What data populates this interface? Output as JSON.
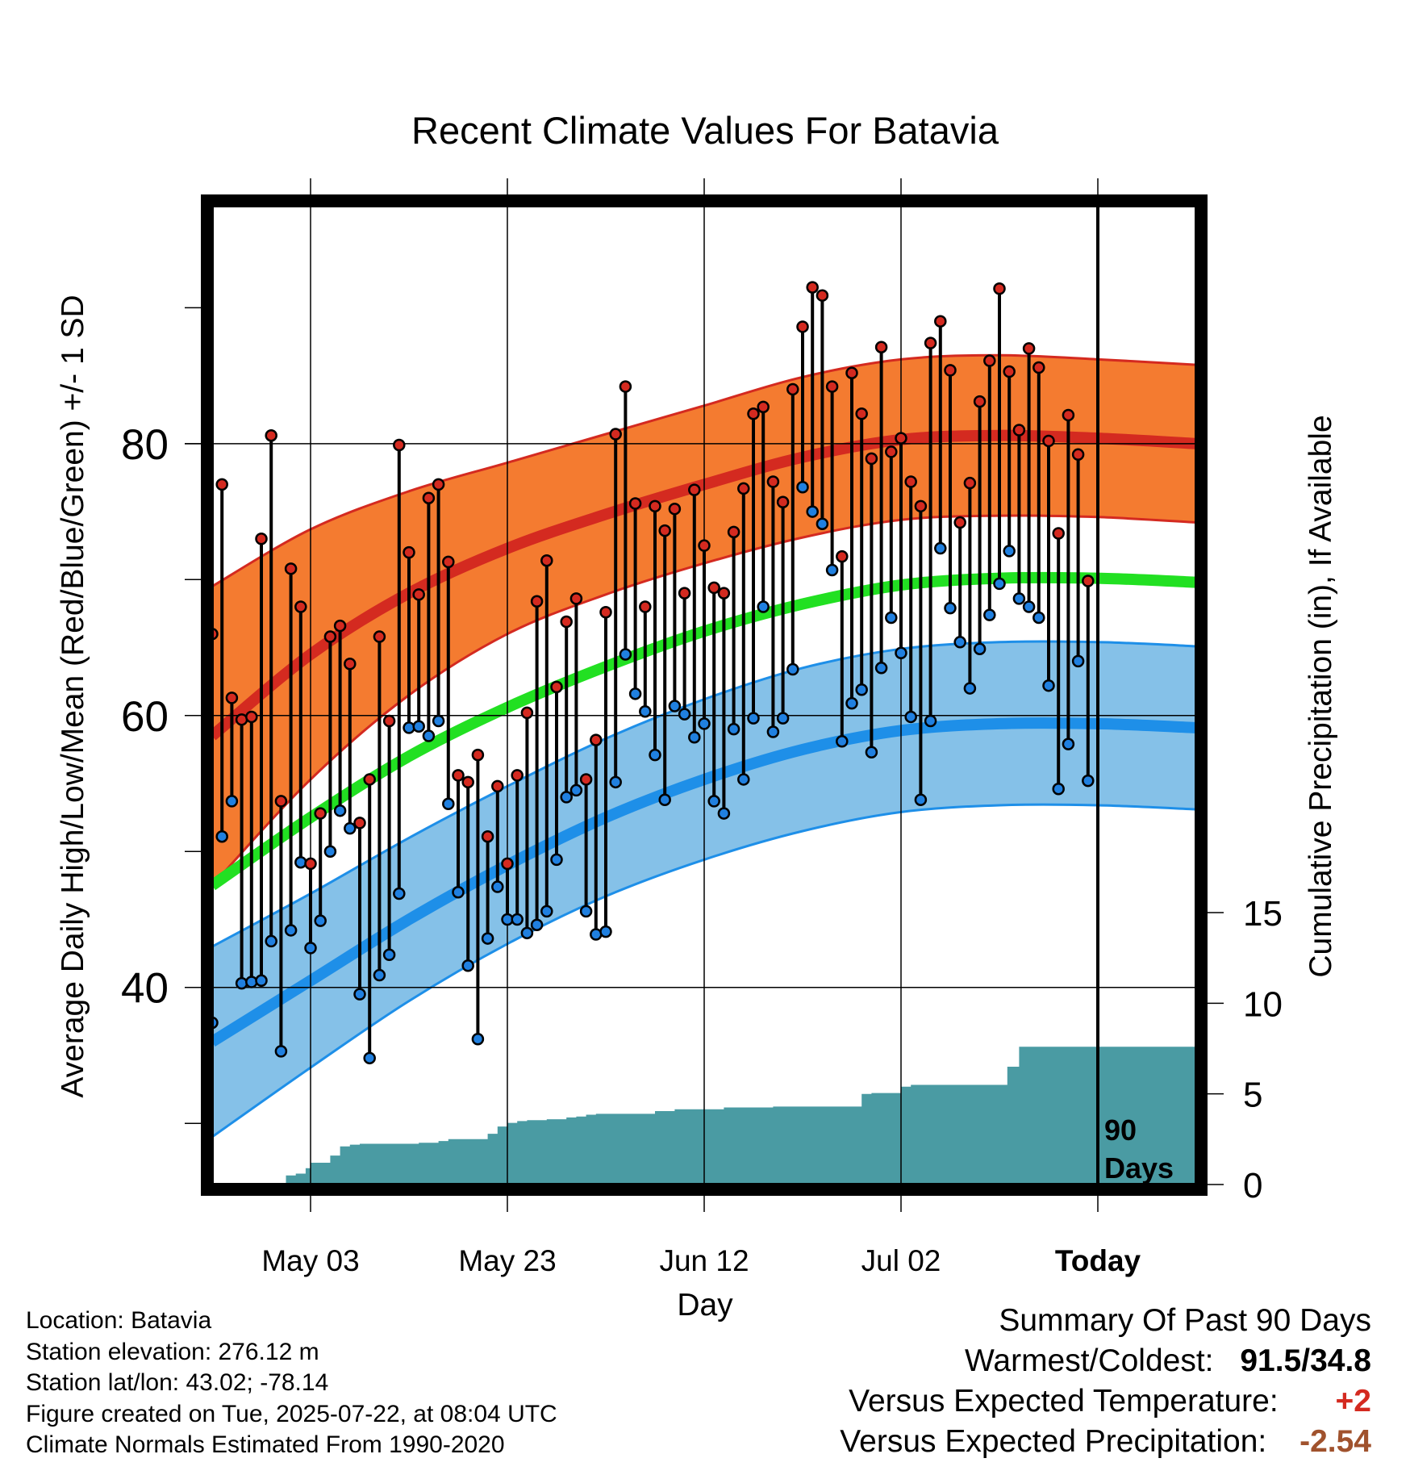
{
  "colors": {
    "high_band": "#f47b30",
    "high_line": "#d42a20",
    "low_band": "#85c1e8",
    "low_line": "#1e8fe8",
    "mean_line": "#22e022",
    "precip": "#4a9ba3",
    "high_dot": "#d42a20",
    "low_dot": "#2080e0",
    "temp_anomaly": "#d42a20",
    "precip_anomaly": "#a0522d"
  },
  "chart_data": {
    "type": "line",
    "title": "Recent Climate Values For Batavia",
    "xlabel": "Day",
    "ylabel": "Average Daily High/Low/Mean (Red/Blue/Green) +/- 1 SD",
    "y2label": "Cumulative Precipitation (in), If Available",
    "x_tick_labels": [
      "May 03",
      "May 23",
      "Jun 12",
      "Jul 02",
      "Today"
    ],
    "y_ticks": [
      "40",
      "60",
      "80"
    ],
    "y2_ticks": [
      "0",
      "5",
      "10",
      "15"
    ],
    "xlim_days": [
      0,
      100
    ],
    "ylim": [
      25.5,
      97.5
    ],
    "y2lim": [
      0,
      54
    ],
    "today_marker_day": 90,
    "today_annotation": [
      "90",
      "Days"
    ],
    "grid": true,
    "normals": {
      "days": [
        0,
        10,
        20,
        30,
        40,
        50,
        60,
        70,
        80,
        90,
        100
      ],
      "high": [
        58.5,
        64.5,
        69,
        72.3,
        74.8,
        77,
        79,
        80.3,
        80.6,
        80.4,
        80
      ],
      "low": [
        36,
        40.5,
        45,
        49,
        52.5,
        55.3,
        57.5,
        58.9,
        59.4,
        59.4,
        59.1
      ],
      "mean": [
        47.5,
        52.5,
        57,
        60.6,
        63.6,
        66.2,
        68.2,
        69.6,
        70.1,
        70.1,
        69.8
      ],
      "high_sd": [
        11,
        9.2,
        7.5,
        6.3,
        5.9,
        5.8,
        5.9,
        5.9,
        5.9,
        5.8,
        5.8
      ],
      "low_sd": [
        7,
        6.4,
        6,
        5.8,
        5.8,
        5.9,
        6,
        6,
        6,
        6,
        6
      ]
    },
    "series": [
      {
        "name": "High",
        "values": [
          66,
          77,
          61.3,
          59.7,
          59.9,
          73,
          80.6,
          53.7,
          70.8,
          68,
          49.1,
          52.8,
          65.8,
          66.6,
          63.8,
          52.1,
          55.3,
          65.8,
          59.6,
          79.9,
          72,
          68.9,
          76,
          77,
          71.3,
          55.6,
          55.1,
          57.1,
          51.1,
          54.8,
          49.1,
          55.6,
          60.2,
          68.4,
          71.4,
          62.1,
          66.9,
          68.6,
          55.3,
          58.2,
          67.6,
          80.7,
          84.2,
          75.6,
          68,
          75.4,
          73.6,
          75.2,
          69,
          76.6,
          72.5,
          69.4,
          69,
          73.5,
          76.7,
          82.2,
          82.7,
          77.2,
          75.7,
          84,
          88.6,
          91.5,
          90.9,
          84.2,
          71.7,
          85.2,
          82.2,
          78.9,
          87.1,
          79.4,
          80.4,
          77.2,
          75.4,
          87.4,
          89,
          85.4,
          74.2,
          77.1,
          83.1,
          86.1,
          91.4,
          85.3,
          81,
          87,
          85.6,
          80.2,
          73.4,
          82.1,
          79.2,
          69.9
        ],
        "color": "#d42a20"
      },
      {
        "name": "Low",
        "values": [
          37.4,
          51.1,
          53.7,
          40.3,
          40.4,
          40.5,
          43.4,
          35.3,
          44.2,
          49.2,
          42.9,
          44.9,
          50,
          53,
          51.7,
          39.5,
          34.8,
          40.9,
          42.4,
          46.9,
          59.1,
          59.2,
          58.5,
          59.6,
          53.5,
          47,
          41.6,
          36.2,
          43.6,
          47.4,
          45,
          45,
          44,
          44.6,
          45.6,
          49.4,
          54,
          54.5,
          45.6,
          43.9,
          44.1,
          55.1,
          64.5,
          61.6,
          60.3,
          57.1,
          53.8,
          60.7,
          60.1,
          58.4,
          59.4,
          53.7,
          52.8,
          59,
          55.3,
          59.8,
          68,
          58.8,
          59.8,
          63.4,
          76.8,
          75,
          74.1,
          70.7,
          58.1,
          60.9,
          61.9,
          57.3,
          63.5,
          67.2,
          64.6,
          59.9,
          53.8,
          59.6,
          72.3,
          67.9,
          65.4,
          62,
          64.9,
          67.4,
          69.7,
          72.1,
          68.6,
          68,
          67.2,
          62.2,
          54.6,
          57.9,
          64,
          55.2
        ],
        "color": "#2080e0"
      }
    ],
    "precipitation": {
      "days": [
        0,
        7,
        7.5,
        8.5,
        9.5,
        10,
        11,
        12,
        13,
        14,
        15,
        16,
        17,
        18,
        19,
        20,
        21,
        22,
        23,
        24,
        25,
        26,
        27,
        28,
        29,
        30,
        31,
        32,
        33,
        34,
        35,
        36,
        37,
        38,
        39,
        40,
        45,
        46,
        47,
        50,
        52,
        54,
        57,
        60,
        63,
        65,
        66,
        67,
        68,
        70,
        71,
        74,
        80,
        80.8,
        82,
        90,
        100
      ],
      "inches": [
        0,
        0,
        0.5,
        0.6,
        0.9,
        1.2,
        1.2,
        1.6,
        2.1,
        2.2,
        2.25,
        2.25,
        2.25,
        2.25,
        2.25,
        2.25,
        2.3,
        2.3,
        2.4,
        2.5,
        2.5,
        2.5,
        2.5,
        2.8,
        3.2,
        3.4,
        3.5,
        3.55,
        3.55,
        3.6,
        3.6,
        3.7,
        3.75,
        3.85,
        3.9,
        3.9,
        4.05,
        4.05,
        4.15,
        4.15,
        4.25,
        4.25,
        4.3,
        4.3,
        4.3,
        4.3,
        5,
        5.05,
        5.05,
        5.4,
        5.5,
        5.5,
        5.5,
        6.5,
        7.6,
        7.6,
        7.6
      ]
    }
  },
  "info": {
    "location": "Location: Batavia",
    "elevation": "Station elevation: 276.12 m",
    "latlon": "Station lat/lon: 43.02; -78.14",
    "created": "Figure created on Tue, 2025-07-22, at 08:04 UTC",
    "normals": "Climate Normals Estimated From 1990-2020"
  },
  "summary": {
    "title": "Summary Of Past 90 Days",
    "warm_cold_label": "Warmest/Coldest:",
    "warm_cold_value": "91.5/34.8",
    "temp_label": "Versus Expected Temperature:",
    "temp_value": "+2",
    "precip_label": "Versus Expected Precipitation:",
    "precip_value": "-2.54"
  }
}
